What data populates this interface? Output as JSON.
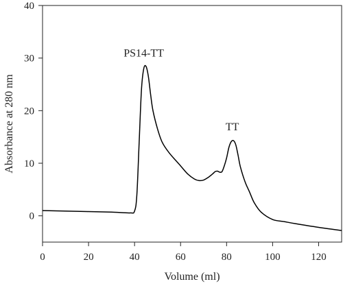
{
  "chart_data": {
    "type": "line",
    "title": "",
    "xlabel": "Volume (ml)",
    "ylabel": "Absorbance at 280 nm",
    "xlim": [
      0,
      130
    ],
    "ylim": [
      -5,
      40
    ],
    "xticks": [
      0,
      20,
      40,
      60,
      80,
      100,
      120
    ],
    "yticks": [
      0,
      10,
      20,
      30,
      40
    ],
    "grid": false,
    "legend": "none",
    "series": [
      {
        "color": "#000000",
        "x": [
          0,
          10,
          20,
          30,
          38,
          40,
          41,
          42,
          43,
          44,
          45,
          46,
          47,
          48,
          50,
          52,
          55,
          60,
          63,
          66,
          68,
          70,
          72,
          74,
          75,
          76,
          77,
          78,
          79,
          80,
          81,
          82,
          83,
          84,
          85,
          86,
          88,
          90,
          92,
          95,
          100,
          105,
          110,
          120,
          130
        ],
        "y": [
          1.0,
          0.9,
          0.8,
          0.7,
          0.55,
          0.9,
          4.0,
          14.0,
          24.0,
          28.0,
          28.4,
          26.5,
          23.0,
          20.0,
          16.5,
          14.0,
          12.0,
          9.5,
          8.0,
          7.0,
          6.7,
          6.8,
          7.3,
          8.0,
          8.4,
          8.5,
          8.3,
          8.4,
          9.5,
          11.0,
          13.0,
          14.1,
          14.3,
          13.5,
          11.5,
          9.3,
          6.5,
          4.5,
          2.5,
          0.7,
          -0.7,
          -1.1,
          -1.5,
          -2.2,
          -2.8
        ]
      }
    ],
    "annotations": [
      {
        "text": "PS14-TT",
        "x": 44,
        "y": 29.5
      },
      {
        "text": "TT",
        "x": 82.5,
        "y": 15.5
      }
    ]
  }
}
